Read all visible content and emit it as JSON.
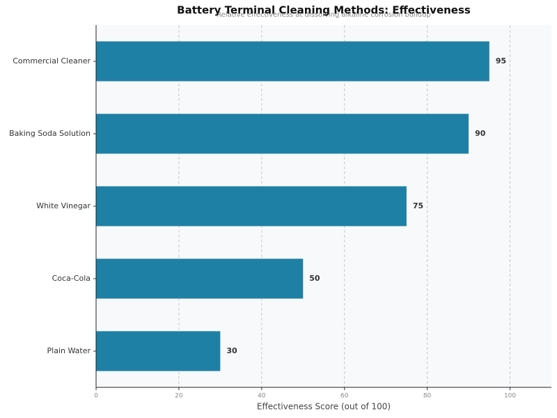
{
  "chart_data": {
    "type": "bar",
    "orientation": "horizontal",
    "title": "Battery Terminal Cleaning Methods: Effectiveness",
    "subtitle": "Relative effectiveness at dissolving alkaline corrosion buildup",
    "categories": [
      "Commercial Cleaner",
      "Baking Soda Solution",
      "White Vinegar",
      "Coca-Cola",
      "Plain Water"
    ],
    "values": [
      95,
      90,
      75,
      50,
      30
    ],
    "color": "#1f80a5",
    "xlabel": "Effectiveness Score (out of 100)",
    "xlim": [
      0,
      110
    ],
    "xticks": [
      0,
      20,
      40,
      60,
      80,
      100
    ],
    "grid": true
  }
}
